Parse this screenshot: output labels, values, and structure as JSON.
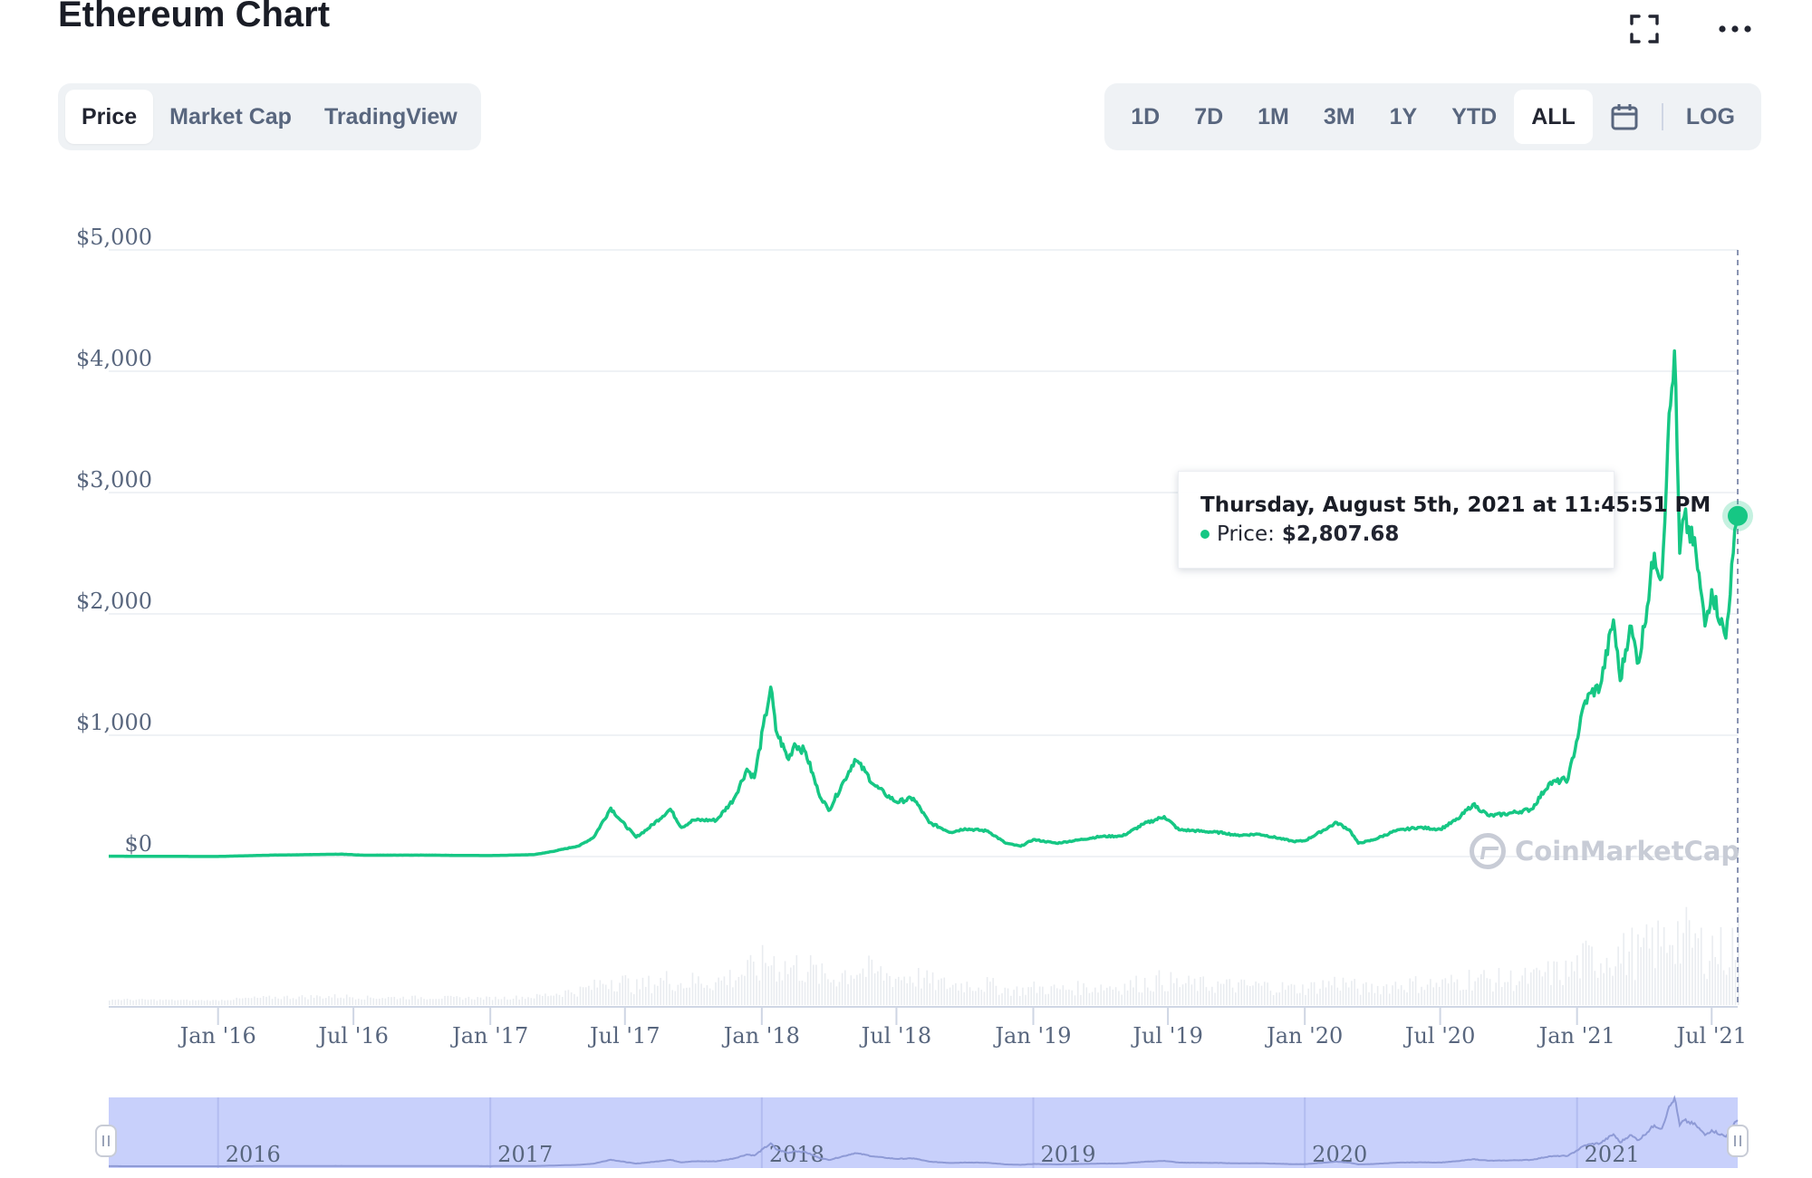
{
  "header": {
    "title": "Ethereum Chart",
    "fullscreen_icon": "fullscreen-icon",
    "more_icon": "more-horizontal-icon"
  },
  "tabs": [
    {
      "label": "Price",
      "active": true
    },
    {
      "label": "Market Cap",
      "active": false
    },
    {
      "label": "TradingView",
      "active": false
    }
  ],
  "ranges": [
    {
      "label": "1D",
      "active": false
    },
    {
      "label": "7D",
      "active": false
    },
    {
      "label": "1M",
      "active": false
    },
    {
      "label": "3M",
      "active": false
    },
    {
      "label": "1Y",
      "active": false
    },
    {
      "label": "YTD",
      "active": false
    },
    {
      "label": "ALL",
      "active": true
    }
  ],
  "calendar_icon": "calendar-icon",
  "log_label": "LOG",
  "tooltip": {
    "title": "Thursday, August 5th, 2021 at 11:45:51 PM",
    "price_label": "Price:",
    "price_value": "$2,807.68"
  },
  "watermark": "CoinMarketCap",
  "colors": {
    "line": "#16c784",
    "navigator": "#c8d0fb",
    "text": "#58667e",
    "grid": "#eff2f5"
  },
  "chart_data": {
    "type": "line",
    "x_unit": "date",
    "ylim": [
      0,
      5000
    ],
    "ytick_labels": [
      "$0",
      "$1,000",
      "$2,000",
      "$3,000",
      "$4,000",
      "$5,000"
    ],
    "xtick_labels": [
      "Jan '16",
      "Jul '16",
      "Jan '17",
      "Jul '17",
      "Jan '18",
      "Jul '18",
      "Jan '19",
      "Jul '19",
      "Jan '20",
      "Jul '20",
      "Jan '21",
      "Jul '21"
    ],
    "navigator_years": [
      "2016",
      "2017",
      "2018",
      "2019",
      "2020",
      "2021"
    ],
    "grid": true,
    "series": [
      {
        "values": [
          [
            "2015-08-07",
            3
          ],
          [
            "2015-12-01",
            1
          ],
          [
            "2016-01-01",
            1
          ],
          [
            "2016-03-15",
            12
          ],
          [
            "2016-06-15",
            20
          ],
          [
            "2016-07-15",
            11
          ],
          [
            "2016-10-01",
            12
          ],
          [
            "2017-01-01",
            8
          ],
          [
            "2017-02-28",
            16
          ],
          [
            "2017-03-15",
            30
          ],
          [
            "2017-04-01",
            50
          ],
          [
            "2017-05-01",
            90
          ],
          [
            "2017-05-20",
            160
          ],
          [
            "2017-06-12",
            400
          ],
          [
            "2017-06-25",
            300
          ],
          [
            "2017-07-16",
            160
          ],
          [
            "2017-08-01",
            230
          ],
          [
            "2017-08-31",
            390
          ],
          [
            "2017-09-15",
            240
          ],
          [
            "2017-10-01",
            300
          ],
          [
            "2017-11-01",
            300
          ],
          [
            "2017-11-24",
            470
          ],
          [
            "2017-12-12",
            720
          ],
          [
            "2017-12-22",
            650
          ],
          [
            "2018-01-13",
            1396
          ],
          [
            "2018-01-20",
            1040
          ],
          [
            "2018-02-06",
            800
          ],
          [
            "2018-02-14",
            930
          ],
          [
            "2018-03-01",
            860
          ],
          [
            "2018-03-18",
            530
          ],
          [
            "2018-04-01",
            380
          ],
          [
            "2018-04-22",
            630
          ],
          [
            "2018-05-06",
            800
          ],
          [
            "2018-05-20",
            700
          ],
          [
            "2018-06-01",
            590
          ],
          [
            "2018-06-15",
            520
          ],
          [
            "2018-07-01",
            450
          ],
          [
            "2018-07-24",
            480
          ],
          [
            "2018-08-14",
            280
          ],
          [
            "2018-09-12",
            200
          ],
          [
            "2018-10-01",
            230
          ],
          [
            "2018-11-01",
            210
          ],
          [
            "2018-11-25",
            110
          ],
          [
            "2018-12-15",
            85
          ],
          [
            "2019-01-01",
            140
          ],
          [
            "2019-02-01",
            110
          ],
          [
            "2019-03-01",
            135
          ],
          [
            "2019-04-01",
            165
          ],
          [
            "2019-05-01",
            170
          ],
          [
            "2019-05-30",
            270
          ],
          [
            "2019-06-26",
            330
          ],
          [
            "2019-07-16",
            220
          ],
          [
            "2019-08-01",
            215
          ],
          [
            "2019-09-15",
            195
          ],
          [
            "2019-10-01",
            175
          ],
          [
            "2019-11-01",
            185
          ],
          [
            "2019-12-17",
            125
          ],
          [
            "2020-01-01",
            130
          ],
          [
            "2020-02-13",
            280
          ],
          [
            "2020-03-01",
            220
          ],
          [
            "2020-03-13",
            110
          ],
          [
            "2020-04-01",
            135
          ],
          [
            "2020-05-01",
            210
          ],
          [
            "2020-06-01",
            240
          ],
          [
            "2020-07-01",
            225
          ],
          [
            "2020-07-25",
            310
          ],
          [
            "2020-08-14",
            430
          ],
          [
            "2020-09-05",
            335
          ],
          [
            "2020-10-01",
            355
          ],
          [
            "2020-11-01",
            390
          ],
          [
            "2020-11-24",
            600
          ],
          [
            "2020-12-20",
            640
          ],
          [
            "2021-01-04",
            1050
          ],
          [
            "2021-01-10",
            1250
          ],
          [
            "2021-01-20",
            1350
          ],
          [
            "2021-02-01",
            1400
          ],
          [
            "2021-02-19",
            1950
          ],
          [
            "2021-02-28",
            1450
          ],
          [
            "2021-03-13",
            1900
          ],
          [
            "2021-03-25",
            1600
          ],
          [
            "2021-04-15",
            2500
          ],
          [
            "2021-04-25",
            2300
          ],
          [
            "2021-05-03",
            3400
          ],
          [
            "2021-05-12",
            4168
          ],
          [
            "2021-05-19",
            2500
          ],
          [
            "2021-05-25",
            2800
          ],
          [
            "2021-06-10",
            2500
          ],
          [
            "2021-06-22",
            1900
          ],
          [
            "2021-07-01",
            2200
          ],
          [
            "2021-07-20",
            1800
          ],
          [
            "2021-07-30",
            2500
          ],
          [
            "2021-08-05",
            2807.68
          ]
        ]
      }
    ]
  }
}
